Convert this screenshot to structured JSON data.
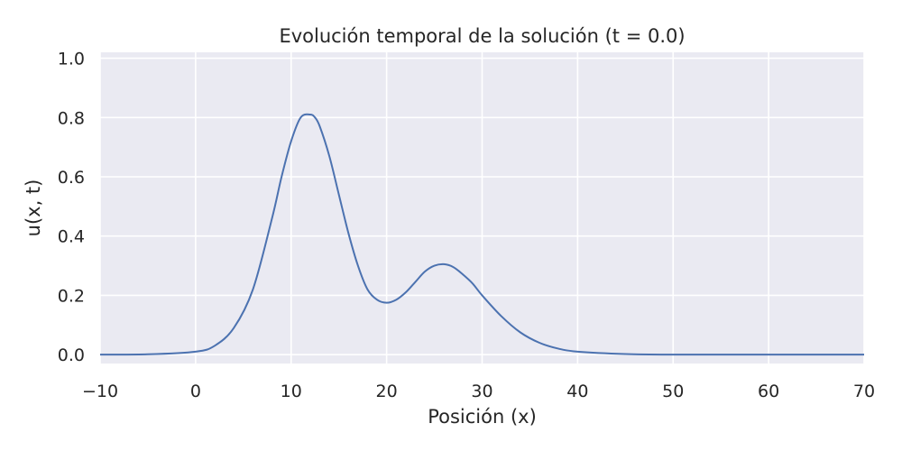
{
  "chart_data": {
    "type": "line",
    "title": "Evolución temporal de la solución (t = 0.0)",
    "xlabel": "Posición (x)",
    "ylabel": "u(x, t)",
    "xlim": [
      -10,
      70
    ],
    "ylim": [
      -0.03,
      1.02
    ],
    "x_ticks": [
      -10,
      0,
      10,
      20,
      30,
      40,
      50,
      60,
      70
    ],
    "x_tick_labels": [
      "−10",
      "0",
      "10",
      "20",
      "30",
      "40",
      "50",
      "60",
      "70"
    ],
    "y_ticks": [
      0.0,
      0.2,
      0.4,
      0.6,
      0.8,
      1.0
    ],
    "y_tick_labels": [
      "0.0",
      "0.2",
      "0.4",
      "0.6",
      "0.8",
      "1.0"
    ],
    "grid": true,
    "colors": {
      "line": "#4c72b0",
      "plot_bg": "#eaeaf2",
      "grid": "#ffffff"
    },
    "series": [
      {
        "x": [
          -10,
          -5,
          0,
          2,
          4,
          6,
          8,
          9,
          10,
          11,
          12,
          12.5,
          13,
          14,
          15,
          16,
          17,
          18,
          19,
          20,
          21,
          22,
          23,
          24,
          25,
          26,
          27,
          28,
          29,
          30,
          32,
          34,
          36,
          38,
          40,
          45,
          50,
          60,
          70
        ],
        "y": [
          0.0,
          0.001,
          0.01,
          0.03,
          0.09,
          0.22,
          0.46,
          0.6,
          0.72,
          0.8,
          0.81,
          0.8,
          0.77,
          0.67,
          0.54,
          0.41,
          0.3,
          0.22,
          0.185,
          0.175,
          0.185,
          0.21,
          0.245,
          0.28,
          0.3,
          0.305,
          0.295,
          0.27,
          0.24,
          0.2,
          0.13,
          0.075,
          0.04,
          0.02,
          0.01,
          0.002,
          0.0,
          0.0,
          0.0
        ]
      }
    ]
  }
}
